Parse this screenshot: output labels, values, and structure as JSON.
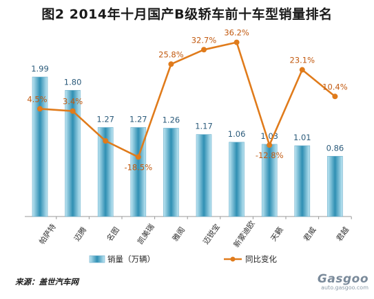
{
  "title": "图2  2014年十月国产B级轿车前十车型销量排名",
  "source": "来源：盖世汽车网",
  "watermark": {
    "brand": "Gasgoo",
    "url": "auto.gasgoo.com"
  },
  "colors": {
    "bar": "#8fd1e8",
    "bar_dark": "#2f8fb3",
    "line": "#e07b1b"
  },
  "chart_data": {
    "type": "bar",
    "categories": [
      "帕萨特",
      "迈腾",
      "名图",
      "凯美瑞",
      "雅阁",
      "迈锐宝",
      "新蒙迪欧",
      "天籁",
      "君威",
      "君越"
    ],
    "series": [
      {
        "name": "销量（万辆）",
        "type": "bar",
        "values": [
          1.99,
          1.8,
          1.27,
          1.27,
          1.26,
          1.17,
          1.06,
          1.03,
          1.01,
          0.86
        ],
        "labels": [
          "1.99",
          "1.80",
          "1.27",
          "1.27",
          "1.26",
          "1.17",
          "1.06",
          "1.03",
          "1.01",
          "0.86"
        ]
      },
      {
        "name": "同比变化",
        "type": "line",
        "values": [
          4.5,
          3.4,
          null,
          -18.5,
          25.8,
          32.7,
          36.2,
          -12.8,
          23.1,
          10.4
        ],
        "labels": [
          "4.5%",
          "3.4%",
          "",
          "-18.5%",
          "25.8%",
          "32.7%",
          "36.2%",
          "-12.8%",
          "23.1%",
          "10.4%"
        ]
      }
    ],
    "legend": {
      "position": "bottom",
      "items": [
        "销量（万辆）",
        "同比变化"
      ]
    },
    "grid": false
  }
}
